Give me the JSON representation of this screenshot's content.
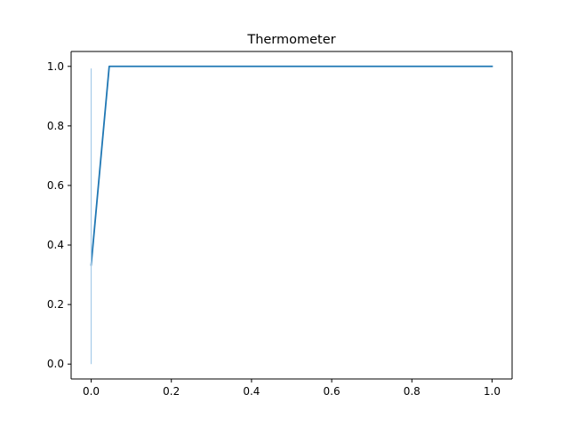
{
  "chart_data": {
    "type": "line",
    "title": "Thermometer",
    "xlabel": "",
    "ylabel": "",
    "xlim": [
      -0.05,
      1.05
    ],
    "ylim": [
      -0.05,
      1.05
    ],
    "x_ticks": [
      0.0,
      0.2,
      0.4,
      0.6,
      0.8,
      1.0
    ],
    "x_tick_labels": [
      "0.0",
      "0.2",
      "0.4",
      "0.6",
      "0.8",
      "1.0"
    ],
    "y_ticks": [
      0.0,
      0.2,
      0.4,
      0.6,
      0.8,
      1.0
    ],
    "y_tick_labels": [
      "0.0",
      "0.2",
      "0.4",
      "0.6",
      "0.8",
      "1.0"
    ],
    "grid": false,
    "legend": "none",
    "series": [
      {
        "kind": "line",
        "color": "#1f77b4",
        "x": [
          0.0,
          0.045,
          1.0
        ],
        "y": [
          0.333,
          1.0,
          1.0
        ]
      },
      {
        "kind": "vertical-range",
        "color": "#a6cbe8",
        "x": [
          0.0,
          0.0
        ],
        "y": [
          0.0,
          0.993
        ]
      }
    ]
  }
}
